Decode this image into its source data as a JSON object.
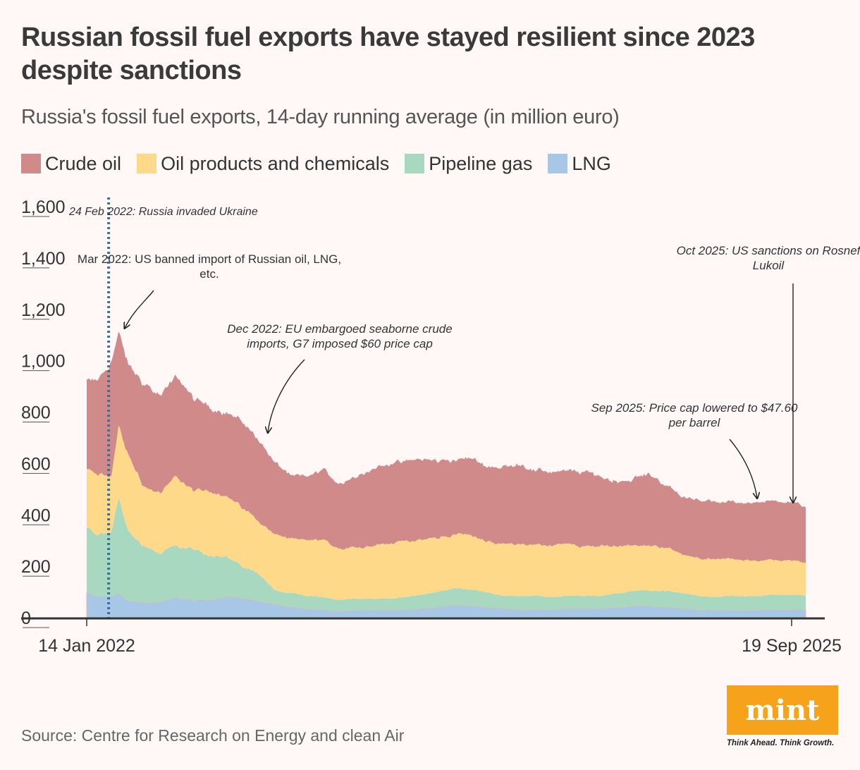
{
  "header": {
    "title": "Russian fossil fuel exports have stayed resilient since 2023 despite sanctions",
    "subtitle": "Russia's fossil fuel exports, 14-day running average (in million euro)"
  },
  "source": "Source: Centre for Research on Energy and clean Air",
  "brand": {
    "logo_text": "mint",
    "tagline": "Think Ahead. Think Growth.",
    "color": "#f7a21b"
  },
  "chart_data": {
    "type": "area",
    "stacked": true,
    "x_start": "2022-01-14",
    "x_end": "2025-09-19",
    "x_tick_labels": [
      "14 Jan 2022",
      "19 Sep 2025"
    ],
    "ylim": [
      0,
      1600
    ],
    "y_ticks": [
      0,
      200,
      400,
      600,
      800,
      1000,
      1200,
      1400,
      1600
    ],
    "y_tick_labels": [
      "0",
      "200",
      "400",
      "600",
      "800",
      "1,000",
      "1,200",
      "1,400",
      "1,600"
    ],
    "legend_position": "top-left",
    "x": [
      "2022-01-14",
      "2022-02-01",
      "2022-03-01",
      "2022-03-15",
      "2022-04-01",
      "2022-05-01",
      "2022-06-01",
      "2022-07-01",
      "2022-08-01",
      "2022-09-01",
      "2022-10-01",
      "2022-11-01",
      "2022-12-01",
      "2023-01-01",
      "2023-02-01",
      "2023-03-01",
      "2023-04-01",
      "2023-05-01",
      "2023-06-01",
      "2023-07-01",
      "2023-08-01",
      "2023-09-01",
      "2023-10-01",
      "2023-11-01",
      "2023-12-01",
      "2024-01-01",
      "2024-02-01",
      "2024-03-01",
      "2024-04-01",
      "2024-05-01",
      "2024-06-01",
      "2024-07-01",
      "2024-08-01",
      "2024-09-01",
      "2024-10-01",
      "2024-11-01",
      "2024-12-01",
      "2025-01-01",
      "2025-02-01",
      "2025-03-01",
      "2025-04-01",
      "2025-05-01",
      "2025-06-01",
      "2025-07-01",
      "2025-08-01",
      "2025-09-19"
    ],
    "series": [
      {
        "name": "LNG",
        "color": "#a8c6e6",
        "values": [
          95,
          85,
          80,
          95,
          65,
          60,
          60,
          80,
          65,
          70,
          80,
          75,
          65,
          50,
          40,
          35,
          30,
          25,
          30,
          28,
          30,
          30,
          35,
          40,
          50,
          45,
          40,
          35,
          30,
          30,
          30,
          35,
          35,
          35,
          40,
          45,
          45,
          40,
          35,
          30,
          30,
          30,
          28,
          30,
          30,
          32
        ]
      },
      {
        "name": "Pipeline gas",
        "color": "#a8d8c0",
        "values": [
          255,
          240,
          250,
          370,
          270,
          220,
          190,
          200,
          200,
          170,
          160,
          125,
          110,
          55,
          55,
          50,
          50,
          45,
          45,
          45,
          45,
          50,
          55,
          60,
          65,
          65,
          60,
          50,
          55,
          55,
          50,
          50,
          50,
          50,
          55,
          60,
          60,
          65,
          60,
          55,
          50,
          55,
          55,
          55,
          60,
          55
        ]
      },
      {
        "name": "Oil products and chemicals",
        "color": "#ffd98a",
        "values": [
          230,
          230,
          220,
          280,
          300,
          230,
          235,
          270,
          230,
          250,
          240,
          230,
          200,
          220,
          210,
          215,
          220,
          200,
          200,
          205,
          215,
          215,
          215,
          210,
          210,
          210,
          200,
          200,
          205,
          200,
          200,
          200,
          190,
          195,
          185,
          175,
          175,
          170,
          150,
          150,
          145,
          145,
          140,
          140,
          135,
          130
        ]
      },
      {
        "name": "Crude oil",
        "color": "#d08a8a",
        "values": [
          340,
          365,
          450,
          360,
          350,
          400,
          375,
          390,
          360,
          330,
          320,
          330,
          320,
          275,
          245,
          250,
          275,
          250,
          280,
          300,
          310,
          310,
          310,
          300,
          290,
          300,
          290,
          300,
          310,
          290,
          290,
          285,
          290,
          270,
          250,
          260,
          280,
          240,
          225,
          230,
          220,
          220,
          225,
          225,
          235,
          215
        ]
      }
    ],
    "annotations": [
      {
        "date": "2022-02-24",
        "text": "24 Feb 2022: Russia invaded Ukraine"
      },
      {
        "date": "2022-03-08",
        "text_lines": [
          "Mar 2022: US banned import of Russian oil, LNG,",
          "etc."
        ]
      },
      {
        "date": "2022-12-05",
        "text_lines": [
          "Dec 2022: EU embargoed seaborne crude",
          "imports, G7 imposed $60 price cap"
        ]
      },
      {
        "date": "2025-09-03",
        "text_lines": [
          "Sep 2025: Price cap lowered to $47.60",
          "per barrel"
        ]
      },
      {
        "date": "2025-10-22",
        "text_lines": [
          "Oct 2025: US sanctions on Rosnef",
          "Lukoil"
        ]
      }
    ]
  }
}
